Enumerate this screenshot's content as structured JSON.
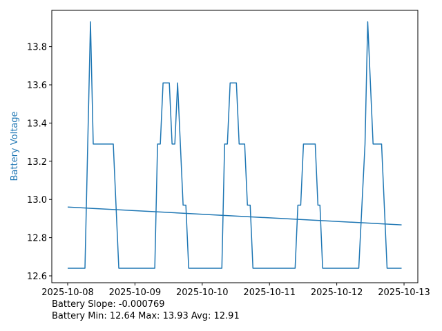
{
  "chart_data": {
    "type": "line",
    "ylabel": "Battery Voltage",
    "ylabel_color": "#1f77b4",
    "series": [
      {
        "color": "#1f77b4",
        "x": [
          0,
          0.257,
          0.339,
          0.38,
          0.678,
          0.76,
          1.295,
          1.336,
          1.377,
          1.418,
          1.511,
          1.552,
          1.593,
          1.634,
          1.716,
          1.757,
          1.799,
          2.292,
          2.333,
          2.374,
          2.415,
          2.508,
          2.549,
          2.631,
          2.672,
          2.713,
          2.754,
          3.381,
          3.422,
          3.464,
          3.505,
          3.68,
          3.72,
          3.75,
          3.79,
          4.327,
          4.42,
          4.46,
          4.54,
          4.666,
          4.748,
          4.964
        ],
        "values": [
          12.64,
          12.64,
          13.93,
          13.29,
          13.29,
          12.64,
          12.64,
          13.29,
          13.29,
          13.61,
          13.61,
          13.29,
          13.29,
          13.61,
          12.97,
          12.97,
          12.64,
          12.64,
          13.29,
          13.29,
          13.61,
          13.61,
          13.29,
          13.29,
          12.97,
          12.97,
          12.64,
          12.64,
          12.97,
          12.97,
          13.29,
          13.29,
          12.97,
          12.97,
          12.64,
          12.64,
          13.29,
          13.93,
          13.29,
          13.29,
          12.64,
          12.64
        ]
      },
      {
        "color": "#1f77b4",
        "x": [
          0,
          4.964
        ],
        "values": [
          12.96,
          12.867
        ]
      }
    ],
    "xlim": [
      -0.236,
      5.205
    ],
    "ylim": [
      12.564,
      13.99
    ],
    "xticks": [
      {
        "value": 0,
        "label": "2025-10-08"
      },
      {
        "value": 1,
        "label": "2025-10-09"
      },
      {
        "value": 2,
        "label": "2025-10-10"
      },
      {
        "value": 3,
        "label": "2025-10-11"
      },
      {
        "value": 4,
        "label": "2025-10-12"
      },
      {
        "value": 5,
        "label": "2025-10-13"
      }
    ],
    "yticks": [
      {
        "value": 12.6,
        "label": "12.6"
      },
      {
        "value": 12.8,
        "label": "12.8"
      },
      {
        "value": 13.0,
        "label": "13.0"
      },
      {
        "value": 13.2,
        "label": "13.2"
      },
      {
        "value": 13.4,
        "label": "13.4"
      },
      {
        "value": 13.6,
        "label": "13.6"
      },
      {
        "value": 13.8,
        "label": "13.8"
      }
    ],
    "annotations": [
      "Battery Slope: -0.000769",
      "Battery Min: 12.64 Max: 13.93 Avg: 12.91"
    ]
  }
}
